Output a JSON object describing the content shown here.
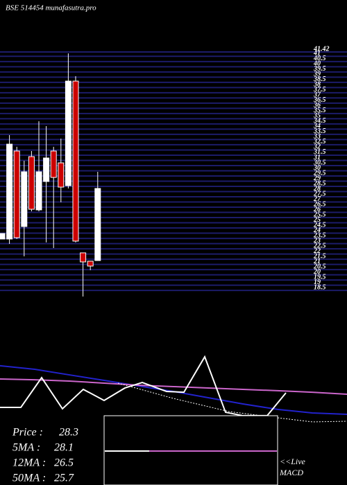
{
  "chart_data": [
    {
      "type": "candlestick",
      "title": "BSE 514454  munafasutra.pro",
      "categories": [
        null,
        null,
        null,
        null,
        null,
        null,
        null,
        null,
        null,
        null,
        null,
        null,
        null,
        null
      ],
      "open": [
        23.44,
        23.44,
        31.9,
        24.64,
        31.36,
        26.24,
        28.97,
        31.9,
        30.76,
        28.57,
        38.62,
        22.11,
        21.31,
        21.37
      ],
      "high": [
        23.97,
        33.43,
        32.3,
        30.96,
        31.9,
        34.76,
        34.29,
        32.3,
        33.09,
        41.29,
        39.09,
        22.11,
        21.31,
        29.9
      ],
      "low": [
        23.44,
        22.97,
        23.44,
        21.77,
        26.1,
        26.1,
        23.11,
        22.57,
        26.97,
        28.3,
        23.11,
        17.91,
        20.44,
        21.37
      ],
      "close": [
        23.97,
        32.56,
        23.57,
        29.9,
        26.3,
        29.9,
        31.23,
        29.36,
        28.43,
        38.62,
        23.24,
        21.24,
        20.84,
        28.3
      ],
      "up_color": "#ffffff",
      "down_color": "#cc0000",
      "grid_color": "#1c1c6a",
      "ylim": [
        18.11,
        41.42
      ],
      "yticks": [
        41.42,
        41,
        40.5,
        40,
        39.5,
        39,
        38.5,
        38,
        37.5,
        37,
        36.5,
        36,
        35.5,
        35,
        34.5,
        34,
        33.5,
        33,
        32.5,
        32,
        31.5,
        31,
        30.5,
        30,
        29.5,
        29,
        28.5,
        28,
        27.5,
        27,
        26.5,
        26,
        25.5,
        25,
        24.5,
        24,
        23.5,
        23,
        22.5,
        22,
        21.5,
        21,
        20.5,
        20,
        19.5,
        19,
        18.5
      ]
    },
    {
      "type": "line",
      "xlim": [
        0,
        500
      ],
      "ylim": [
        0,
        100
      ],
      "series": [
        {
          "color": "#2222cc",
          "x": [
            0,
            50,
            100,
            150,
            200,
            250,
            300,
            350,
            400,
            450,
            500
          ],
          "values": [
            45.6,
            42.8,
            38.3,
            33.9,
            29.4,
            25,
            20,
            15,
            10.6,
            7.8,
            6.7
          ]
        },
        {
          "color": "#cc66cc",
          "x": [
            0,
            50,
            100,
            150,
            200,
            250,
            300,
            350,
            400,
            450,
            500
          ],
          "values": [
            35,
            34.4,
            33.3,
            31.7,
            30,
            28.9,
            27.8,
            26.7,
            25.6,
            24.4,
            22.8
          ]
        },
        {
          "color": "#ffffff",
          "x": [
            0,
            30,
            60,
            90,
            120,
            150,
            180,
            205,
            240,
            265,
            295,
            325,
            350,
            385,
            412
          ],
          "values": [
            12.2,
            12.2,
            36.1,
            11.1,
            26.7,
            17.8,
            27.8,
            32.2,
            25,
            24.4,
            52.8,
            8.3,
            5.6,
            5.6,
            23.9
          ]
        },
        {
          "color": "#ffffff",
          "dashed": true,
          "x": [
            170,
            250,
            330,
            400,
            450,
            500
          ],
          "values": [
            31.7,
            19.4,
            8.9,
            3.9,
            0.6,
            1.1
          ]
        }
      ]
    }
  ],
  "info": [
    {
      "label": "Price   :",
      "value": 28.3
    },
    {
      "label": "5MA :",
      "value": 28.1
    },
    {
      "label": "12MA :",
      "value": 26.5
    },
    {
      "label": "50MA :",
      "value": 25.7
    }
  ],
  "live_label": "<<Live",
  "macd_label": "MACD"
}
